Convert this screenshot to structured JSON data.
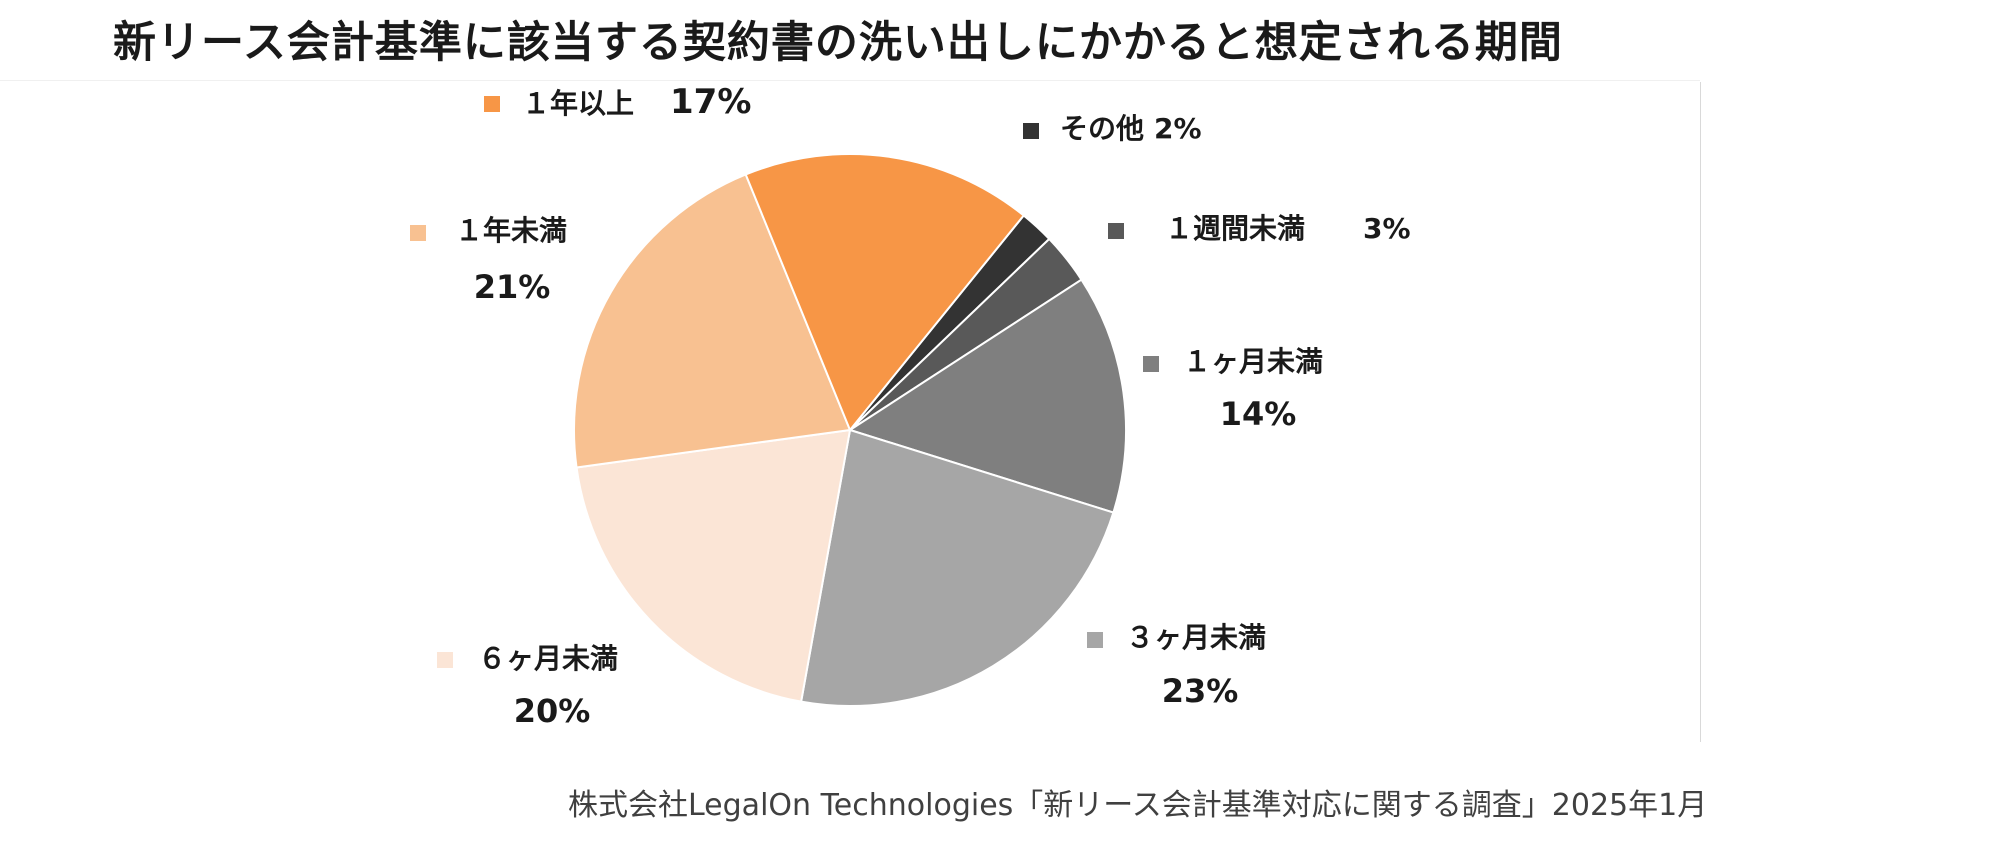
{
  "title": "新リース会計基準に該当する契約書の洗い出しにかかると想定される期間",
  "source": "株式会社LegalOn Technologies「新リース会計基準対応に関する調査」2025年1月",
  "chart_data": {
    "type": "pie",
    "title": "新リース会計基準に該当する契約書の洗い出しにかかると想定される期間",
    "categories": [
      "その他",
      "１週間未満",
      "１ヶ月未満",
      "３ヶ月未満",
      "６ヶ月未満",
      "１年未満",
      "１年以上"
    ],
    "values": [
      2,
      3,
      14,
      23,
      20,
      21,
      17
    ],
    "value_labels": [
      "2%",
      "3%",
      "14%",
      "23%",
      "20%",
      "21%",
      "17%"
    ],
    "colors": [
      "#333333",
      "#595959",
      "#7f7f7f",
      "#a6a6a6",
      "#fbe5d6",
      "#f8c191",
      "#f79646"
    ],
    "start_angle_deg": 39,
    "direction": "clockwise",
    "legend": "labels beside slices"
  }
}
